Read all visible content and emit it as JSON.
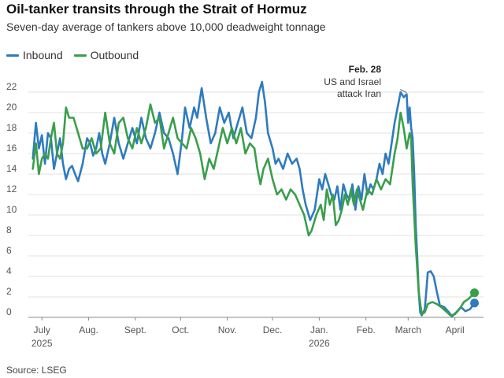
{
  "chart_data": {
    "type": "line",
    "title": "Oil-tanker transits through the Strait of Hormuz",
    "subtitle": "Seven-day average of tankers above 10,000 deadweight tonnage",
    "source": "Source: LSEG",
    "xlabel": "",
    "ylabel": "",
    "ylim": [
      0,
      22
    ],
    "yticks": [
      "0",
      "2",
      "4",
      "6",
      "8",
      "10",
      "12",
      "14",
      "16",
      "18",
      "20",
      "22"
    ],
    "grid": true,
    "legend_position": "top-left",
    "x_range": [
      "2025-06-22",
      "2026-04-20"
    ],
    "x_tick_labels": [
      {
        "date": "2025-07-01",
        "label": "July",
        "sublabel": "2025"
      },
      {
        "date": "2025-08-01",
        "label": "Aug.",
        "sublabel": ""
      },
      {
        "date": "2025-09-01",
        "label": "Sept.",
        "sublabel": ""
      },
      {
        "date": "2025-10-01",
        "label": "Oct.",
        "sublabel": ""
      },
      {
        "date": "2025-11-01",
        "label": "Nov.",
        "sublabel": ""
      },
      {
        "date": "2025-12-01",
        "label": "Dec.",
        "sublabel": ""
      },
      {
        "date": "2026-01-01",
        "label": "Jan.",
        "sublabel": "2026"
      },
      {
        "date": "2026-02-01",
        "label": "Feb.",
        "sublabel": ""
      },
      {
        "date": "2026-03-01",
        "label": "March",
        "sublabel": ""
      },
      {
        "date": "2026-04-01",
        "label": "April",
        "sublabel": ""
      }
    ],
    "annotation": {
      "date": "2026-02-28",
      "value": 21.8,
      "title": "Feb. 28",
      "lines": [
        "US and Israel",
        "attack Iran"
      ]
    },
    "series": [
      {
        "name": "Inbound",
        "color": "#2e7bbf",
        "points": [
          [
            "2025-06-25",
            15.5
          ],
          [
            "2025-06-27",
            19.0
          ],
          [
            "2025-06-29",
            16.5
          ],
          [
            "2025-07-01",
            17.8
          ],
          [
            "2025-07-03",
            15.0
          ],
          [
            "2025-07-05",
            18.0
          ],
          [
            "2025-07-07",
            17.5
          ],
          [
            "2025-07-09",
            14.5
          ],
          [
            "2025-07-11",
            16.0
          ],
          [
            "2025-07-13",
            17.5
          ],
          [
            "2025-07-15",
            15.0
          ],
          [
            "2025-07-17",
            13.5
          ],
          [
            "2025-07-19",
            14.5
          ],
          [
            "2025-07-21",
            14.8
          ],
          [
            "2025-07-23",
            14.0
          ],
          [
            "2025-07-25",
            13.3
          ],
          [
            "2025-07-28",
            15.0
          ],
          [
            "2025-07-31",
            17.5
          ],
          [
            "2025-08-02",
            17.0
          ],
          [
            "2025-08-04",
            15.8
          ],
          [
            "2025-08-06",
            16.5
          ],
          [
            "2025-08-08",
            18.0
          ],
          [
            "2025-08-10",
            16.0
          ],
          [
            "2025-08-12",
            15.0
          ],
          [
            "2025-08-15",
            17.0
          ],
          [
            "2025-08-18",
            19.5
          ],
          [
            "2025-08-21",
            17.0
          ],
          [
            "2025-08-24",
            15.5
          ],
          [
            "2025-08-27",
            17.0
          ],
          [
            "2025-08-30",
            18.5
          ],
          [
            "2025-09-02",
            17.0
          ],
          [
            "2025-09-05",
            19.5
          ],
          [
            "2025-09-08",
            17.5
          ],
          [
            "2025-09-11",
            16.5
          ],
          [
            "2025-09-14",
            18.0
          ],
          [
            "2025-09-17",
            20.0
          ],
          [
            "2025-09-20",
            18.0
          ],
          [
            "2025-09-23",
            17.5
          ],
          [
            "2025-09-26",
            16.0
          ],
          [
            "2025-09-29",
            14.0
          ],
          [
            "2025-10-02",
            17.5
          ],
          [
            "2025-10-04",
            20.5
          ],
          [
            "2025-10-07",
            18.5
          ],
          [
            "2025-10-10",
            20.5
          ],
          [
            "2025-10-12",
            19.5
          ],
          [
            "2025-10-15",
            22.4
          ],
          [
            "2025-10-18",
            19.5
          ],
          [
            "2025-10-21",
            17.0
          ],
          [
            "2025-10-24",
            18.0
          ],
          [
            "2025-10-27",
            20.5
          ],
          [
            "2025-10-30",
            19.0
          ],
          [
            "2025-11-02",
            20.0
          ],
          [
            "2025-11-05",
            17.5
          ],
          [
            "2025-11-08",
            19.0
          ],
          [
            "2025-11-11",
            20.5
          ],
          [
            "2025-11-14",
            18.0
          ],
          [
            "2025-11-17",
            17.5
          ],
          [
            "2025-11-20",
            19.5
          ],
          [
            "2025-11-22",
            22.0
          ],
          [
            "2025-11-24",
            23.0
          ],
          [
            "2025-11-26",
            21.0
          ],
          [
            "2025-11-28",
            18.0
          ],
          [
            "2025-12-01",
            16.5
          ],
          [
            "2025-12-03",
            15.0
          ],
          [
            "2025-12-05",
            15.5
          ],
          [
            "2025-12-08",
            14.5
          ],
          [
            "2025-12-11",
            16.0
          ],
          [
            "2025-12-14",
            15.0
          ],
          [
            "2025-12-17",
            15.5
          ],
          [
            "2025-12-19",
            14.5
          ],
          [
            "2025-12-21",
            12.5
          ],
          [
            "2025-12-23",
            11.0
          ],
          [
            "2025-12-26",
            9.5
          ],
          [
            "2025-12-29",
            10.5
          ],
          [
            "2026-01-01",
            13.5
          ],
          [
            "2026-01-03",
            12.5
          ],
          [
            "2026-01-05",
            14.0
          ],
          [
            "2026-01-07",
            13.0
          ],
          [
            "2026-01-09",
            12.0
          ],
          [
            "2026-01-11",
            11.5
          ],
          [
            "2026-01-13",
            12.8
          ],
          [
            "2026-01-15",
            10.5
          ],
          [
            "2026-01-17",
            13.0
          ],
          [
            "2026-01-19",
            12.0
          ],
          [
            "2026-01-21",
            11.5
          ],
          [
            "2026-01-23",
            13.0
          ],
          [
            "2026-01-25",
            10.5
          ],
          [
            "2026-01-27",
            12.8
          ],
          [
            "2026-01-29",
            11.5
          ],
          [
            "2026-01-31",
            14.0
          ],
          [
            "2026-02-02",
            12.0
          ],
          [
            "2026-02-04",
            13.0
          ],
          [
            "2026-02-06",
            12.5
          ],
          [
            "2026-02-08",
            13.5
          ],
          [
            "2026-02-10",
            15.0
          ],
          [
            "2026-02-12",
            14.0
          ],
          [
            "2026-02-14",
            16.0
          ],
          [
            "2026-02-16",
            15.0
          ],
          [
            "2026-02-18",
            17.0
          ],
          [
            "2026-02-20",
            19.0
          ],
          [
            "2026-02-22",
            20.5
          ],
          [
            "2026-02-24",
            22.0
          ],
          [
            "2026-02-26",
            21.5
          ],
          [
            "2026-02-28",
            21.8
          ],
          [
            "2026-03-01",
            19.0
          ],
          [
            "2026-03-02",
            20.5
          ],
          [
            "2026-03-03",
            18.5
          ],
          [
            "2026-03-04",
            17.5
          ],
          [
            "2026-03-05",
            14.0
          ],
          [
            "2026-03-06",
            9.0
          ],
          [
            "2026-03-07",
            6.0
          ],
          [
            "2026-03-08",
            2.5
          ],
          [
            "2026-03-09",
            0.5
          ],
          [
            "2026-03-10",
            0.2
          ],
          [
            "2026-03-12",
            0.8
          ],
          [
            "2026-03-13",
            2.5
          ],
          [
            "2026-03-14",
            4.4
          ],
          [
            "2026-03-16",
            4.5
          ],
          [
            "2026-03-18",
            4.0
          ],
          [
            "2026-03-20",
            2.5
          ],
          [
            "2026-03-22",
            1.2
          ],
          [
            "2026-03-25",
            1.0
          ],
          [
            "2026-03-28",
            0.5
          ],
          [
            "2026-03-30",
            0.1
          ],
          [
            "2026-04-02",
            0.5
          ],
          [
            "2026-04-05",
            1.0
          ],
          [
            "2026-04-08",
            0.6
          ],
          [
            "2026-04-11",
            0.8
          ],
          [
            "2026-04-14",
            1.4
          ]
        ]
      },
      {
        "name": "Outbound",
        "color": "#3a9e4b",
        "points": [
          [
            "2025-06-25",
            14.5
          ],
          [
            "2025-06-27",
            17.0
          ],
          [
            "2025-06-29",
            14.0
          ],
          [
            "2025-07-01",
            15.5
          ],
          [
            "2025-07-03",
            16.0
          ],
          [
            "2025-07-05",
            15.5
          ],
          [
            "2025-07-07",
            17.5
          ],
          [
            "2025-07-09",
            19.0
          ],
          [
            "2025-07-11",
            16.0
          ],
          [
            "2025-07-13",
            15.5
          ],
          [
            "2025-07-15",
            17.0
          ],
          [
            "2025-07-17",
            20.5
          ],
          [
            "2025-07-19",
            19.5
          ],
          [
            "2025-07-22",
            19.5
          ],
          [
            "2025-07-25",
            18.0
          ],
          [
            "2025-07-28",
            16.5
          ],
          [
            "2025-07-31",
            16.5
          ],
          [
            "2025-08-03",
            17.5
          ],
          [
            "2025-08-06",
            16.0
          ],
          [
            "2025-08-09",
            16.5
          ],
          [
            "2025-08-12",
            20.0
          ],
          [
            "2025-08-15",
            17.0
          ],
          [
            "2025-08-18",
            16.0
          ],
          [
            "2025-08-21",
            19.0
          ],
          [
            "2025-08-24",
            19.5
          ],
          [
            "2025-08-27",
            17.5
          ],
          [
            "2025-08-30",
            16.5
          ],
          [
            "2025-09-02",
            18.5
          ],
          [
            "2025-09-05",
            17.0
          ],
          [
            "2025-09-08",
            18.5
          ],
          [
            "2025-09-11",
            20.8
          ],
          [
            "2025-09-14",
            19.0
          ],
          [
            "2025-09-17",
            19.5
          ],
          [
            "2025-09-20",
            16.5
          ],
          [
            "2025-09-23",
            18.0
          ],
          [
            "2025-09-26",
            19.5
          ],
          [
            "2025-09-29",
            17.5
          ],
          [
            "2025-10-02",
            17.0
          ],
          [
            "2025-10-05",
            16.5
          ],
          [
            "2025-10-08",
            18.5
          ],
          [
            "2025-10-11",
            17.5
          ],
          [
            "2025-10-14",
            16.0
          ],
          [
            "2025-10-17",
            13.5
          ],
          [
            "2025-10-20",
            15.5
          ],
          [
            "2025-10-23",
            14.5
          ],
          [
            "2025-10-26",
            16.5
          ],
          [
            "2025-10-29",
            18.5
          ],
          [
            "2025-11-01",
            17.0
          ],
          [
            "2025-11-04",
            18.5
          ],
          [
            "2025-11-07",
            17.0
          ],
          [
            "2025-11-10",
            18.5
          ],
          [
            "2025-11-13",
            16.0
          ],
          [
            "2025-11-16",
            17.0
          ],
          [
            "2025-11-19",
            16.5
          ],
          [
            "2025-11-21",
            14.5
          ],
          [
            "2025-11-23",
            13.0
          ],
          [
            "2025-11-25",
            14.5
          ],
          [
            "2025-11-28",
            15.5
          ],
          [
            "2025-12-01",
            13.5
          ],
          [
            "2025-12-04",
            12.0
          ],
          [
            "2025-12-07",
            12.5
          ],
          [
            "2025-12-10",
            11.5
          ],
          [
            "2025-12-13",
            12.5
          ],
          [
            "2025-12-16",
            12.0
          ],
          [
            "2025-12-19",
            11.0
          ],
          [
            "2025-12-22",
            10.0
          ],
          [
            "2025-12-25",
            8.0
          ],
          [
            "2025-12-27",
            8.5
          ],
          [
            "2025-12-30",
            10.0
          ],
          [
            "2026-01-02",
            11.0
          ],
          [
            "2026-01-04",
            9.5
          ],
          [
            "2026-01-06",
            12.5
          ],
          [
            "2026-01-08",
            11.0
          ],
          [
            "2026-01-10",
            12.0
          ],
          [
            "2026-01-12",
            9.0
          ],
          [
            "2026-01-14",
            9.5
          ],
          [
            "2026-01-16",
            10.5
          ],
          [
            "2026-01-18",
            12.0
          ],
          [
            "2026-01-20",
            11.0
          ],
          [
            "2026-01-22",
            12.5
          ],
          [
            "2026-01-24",
            11.0
          ],
          [
            "2026-01-26",
            12.5
          ],
          [
            "2026-01-28",
            11.5
          ],
          [
            "2026-01-30",
            10.5
          ],
          [
            "2026-02-02",
            12.5
          ],
          [
            "2026-02-05",
            12.0
          ],
          [
            "2026-02-08",
            13.5
          ],
          [
            "2026-02-11",
            12.5
          ],
          [
            "2026-02-14",
            13.5
          ],
          [
            "2026-02-17",
            13.0
          ],
          [
            "2026-02-20",
            16.0
          ],
          [
            "2026-02-22",
            17.5
          ],
          [
            "2026-02-24",
            20.0
          ],
          [
            "2026-02-26",
            18.5
          ],
          [
            "2026-02-28",
            16.5
          ],
          [
            "2026-03-02",
            18.0
          ],
          [
            "2026-03-03",
            17.5
          ],
          [
            "2026-03-04",
            13.0
          ],
          [
            "2026-03-06",
            7.0
          ],
          [
            "2026-03-08",
            2.5
          ],
          [
            "2026-03-10",
            0.3
          ],
          [
            "2026-03-12",
            0.5
          ],
          [
            "2026-03-14",
            1.3
          ],
          [
            "2026-03-17",
            1.5
          ],
          [
            "2026-03-20",
            1.3
          ],
          [
            "2026-03-23",
            1.0
          ],
          [
            "2026-03-26",
            0.6
          ],
          [
            "2026-03-29",
            0.2
          ],
          [
            "2026-04-01",
            0.3
          ],
          [
            "2026-04-04",
            0.8
          ],
          [
            "2026-04-07",
            1.5
          ],
          [
            "2026-04-10",
            1.8
          ],
          [
            "2026-04-14",
            2.4
          ]
        ]
      }
    ]
  }
}
